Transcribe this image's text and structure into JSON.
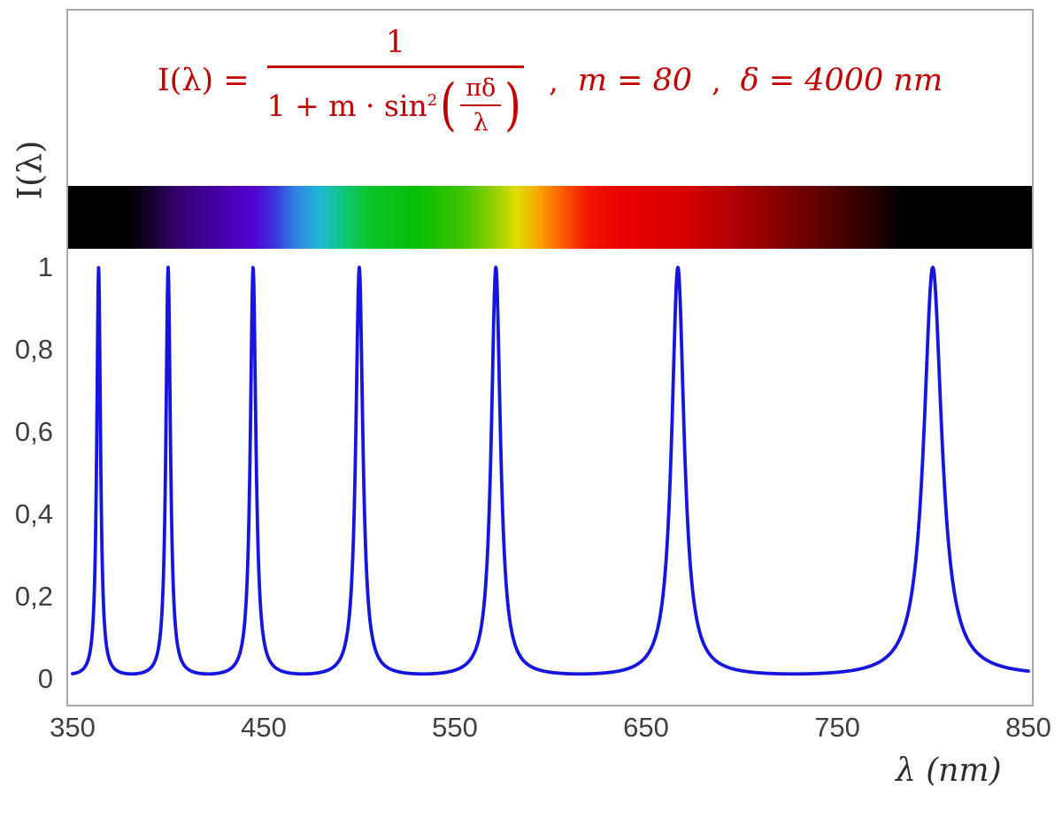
{
  "formula": {
    "lhs": "I(λ) =",
    "numerator": "1",
    "den_prefix": "1 + m · sin",
    "den_sup": "2",
    "inner_num": "πδ",
    "inner_den": "λ",
    "comma1": ",",
    "param_m": "m = 80",
    "comma2": ",",
    "param_delta": "δ = 4000 nm",
    "color": "#c00000"
  },
  "axes": {
    "y_title": "I(λ)",
    "x_title": "λ  (nm)"
  },
  "chart_data": {
    "type": "line",
    "xlabel": "λ  (nm)",
    "ylabel": "I(λ)",
    "xlim": [
      350,
      850
    ],
    "ylim": [
      0,
      1
    ],
    "grid": false,
    "legend": "none",
    "formula_text": "I(λ) = 1 / (1 + m·sin²(πδ/λ))  ,  m = 80  ,  δ = 4000 nm",
    "params": {
      "m": 80,
      "delta_nm": 4000
    },
    "sample_step_nm": 0.2,
    "x_ticks": [
      {
        "label": "350",
        "value": 350
      },
      {
        "label": "450",
        "value": 450
      },
      {
        "label": "550",
        "value": 550
      },
      {
        "label": "650",
        "value": 650
      },
      {
        "label": "750",
        "value": 750
      },
      {
        "label": "850",
        "value": 850
      }
    ],
    "y_ticks": [
      {
        "label": "0",
        "value": 0
      },
      {
        "label": "0,2",
        "value": 0.2
      },
      {
        "label": "0,4",
        "value": 0.4
      },
      {
        "label": "0,6",
        "value": 0.6
      },
      {
        "label": "0,8",
        "value": 0.8
      },
      {
        "label": "1",
        "value": 1
      }
    ],
    "peaks_nm": [
      363.6,
      400.0,
      444.4,
      500.0,
      571.4,
      666.7,
      800.0
    ],
    "peak_value": 1.0,
    "baseline_value": 0.0123,
    "curve_color": "#1515dd",
    "frame_color": "#a8a8a8",
    "tick_color": "#3f3f3f",
    "spectrum_band": {
      "stops": [
        {
          "pos": 0,
          "color": "#000000"
        },
        {
          "pos": 6,
          "color": "#000000"
        },
        {
          "pos": 8.5,
          "color": "#14002a"
        },
        {
          "pos": 11,
          "color": "#30006a"
        },
        {
          "pos": 15,
          "color": "#44009f"
        },
        {
          "pos": 19,
          "color": "#5300d0"
        },
        {
          "pos": 21.5,
          "color": "#3d35dd"
        },
        {
          "pos": 23.5,
          "color": "#2f7fe0"
        },
        {
          "pos": 26,
          "color": "#1fb8d8"
        },
        {
          "pos": 28.5,
          "color": "#0fc77f"
        },
        {
          "pos": 31,
          "color": "#0bc62d"
        },
        {
          "pos": 36,
          "color": "#06bd06"
        },
        {
          "pos": 41,
          "color": "#3fc400"
        },
        {
          "pos": 44,
          "color": "#8ecf00"
        },
        {
          "pos": 46.5,
          "color": "#dede00"
        },
        {
          "pos": 49,
          "color": "#f8a000"
        },
        {
          "pos": 51.5,
          "color": "#fb5500"
        },
        {
          "pos": 54,
          "color": "#f31500"
        },
        {
          "pos": 58,
          "color": "#e80000"
        },
        {
          "pos": 64,
          "color": "#d50000"
        },
        {
          "pos": 70,
          "color": "#a80000"
        },
        {
          "pos": 77,
          "color": "#6a0000"
        },
        {
          "pos": 83,
          "color": "#2c0000"
        },
        {
          "pos": 86.5,
          "color": "#000000"
        },
        {
          "pos": 100,
          "color": "#000000"
        }
      ]
    }
  }
}
